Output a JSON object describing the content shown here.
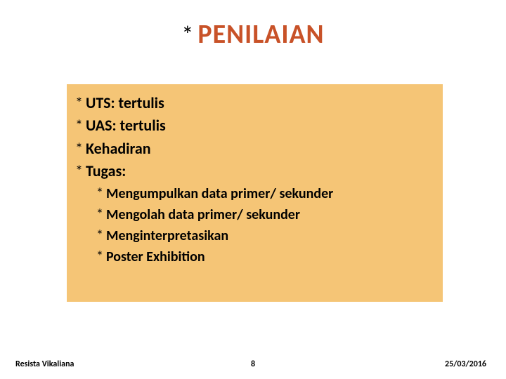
{
  "title": {
    "text": "PENILAIAN",
    "color": "#c85228",
    "fontsize": 38,
    "asterisk": "*"
  },
  "content_box": {
    "background_color": "#f5c576"
  },
  "bullets": {
    "style": "asterisk",
    "glyph": "*",
    "l1_fontsize": 22,
    "l2_fontsize": 20,
    "l1": [
      "UTS: tertulis",
      "UAS: tertulis",
      "Kehadiran",
      "Tugas:"
    ],
    "l2": [
      "Mengumpulkan data primer/ sekunder",
      "Mengolah data primer/ sekunder",
      "Menginterpretasikan",
      "Poster Exhibition"
    ]
  },
  "footer": {
    "author": "Resista Vikaliana",
    "page": "8",
    "date": "25/03/2016",
    "fontsize": 12
  }
}
